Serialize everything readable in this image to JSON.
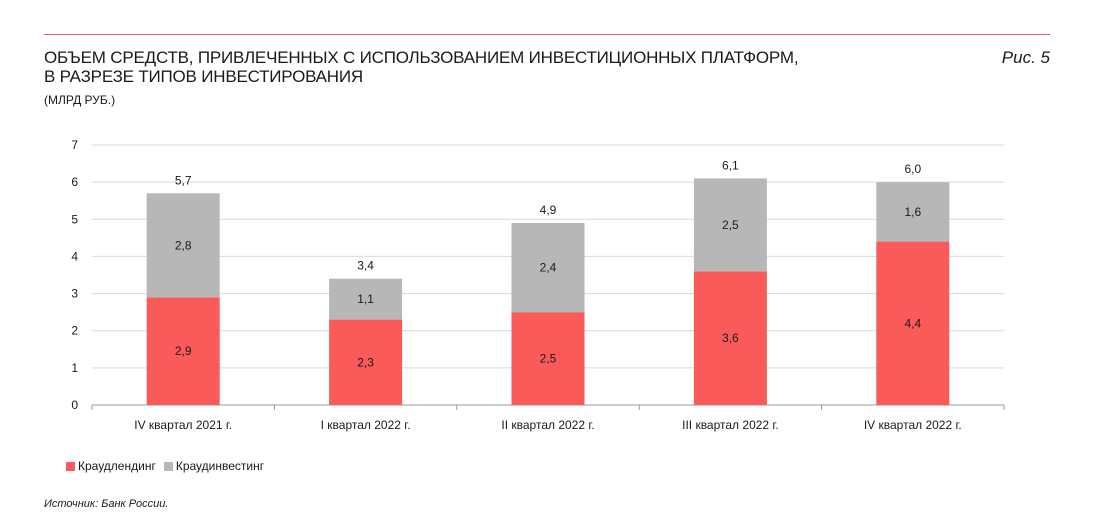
{
  "header": {
    "title_line1": "ОБЪЕМ СРЕДСТВ, ПРИВЛЕЧЕННЫХ С ИСПОЛЬЗОВАНИЕМ ИНВЕСТИЦИОННЫХ ПЛАТФОРМ,",
    "title_line2": "В РАЗРЕЗЕ ТИПОВ ИНВЕСТИРОВАНИЯ",
    "units": "(МЛРД РУБ.)",
    "figure_label": "Рис. 5"
  },
  "footer": {
    "source": "Источник: Банк России."
  },
  "colors": {
    "accent_rule": "#e8566a",
    "crowdlending": "#fa5a5a",
    "crowdinvesting": "#b7b7b7",
    "grid": "#d9d9d9"
  },
  "chart_data": {
    "type": "bar",
    "stacked": true,
    "categories": [
      "IV квартал 2021 г.",
      "I квартал 2022 г.",
      "II квартал 2022 г.",
      "III квартал 2022 г.",
      "IV квартал 2022 г."
    ],
    "series": [
      {
        "name": "Краудлендинг",
        "values": [
          2.9,
          2.3,
          2.5,
          3.6,
          4.4
        ],
        "labels": [
          "2,9",
          "2,3",
          "2,5",
          "3,6",
          "4,4"
        ],
        "color": "#fa5a5a"
      },
      {
        "name": "Краудинвестинг",
        "values": [
          2.8,
          1.1,
          2.4,
          2.5,
          1.6
        ],
        "labels": [
          "2,8",
          "1,1",
          "2,4",
          "2,5",
          "1,6"
        ],
        "color": "#b7b7b7"
      }
    ],
    "totals": [
      5.7,
      3.4,
      4.9,
      6.1,
      6.0
    ],
    "total_labels": [
      "5,7",
      "3,4",
      "4,9",
      "6,1",
      "6,0"
    ],
    "yticks": [
      "0",
      "1",
      "2",
      "3",
      "4",
      "5",
      "6",
      "7"
    ],
    "ylim": [
      0,
      7
    ],
    "grid": true,
    "legend_position": "bottom-left"
  }
}
